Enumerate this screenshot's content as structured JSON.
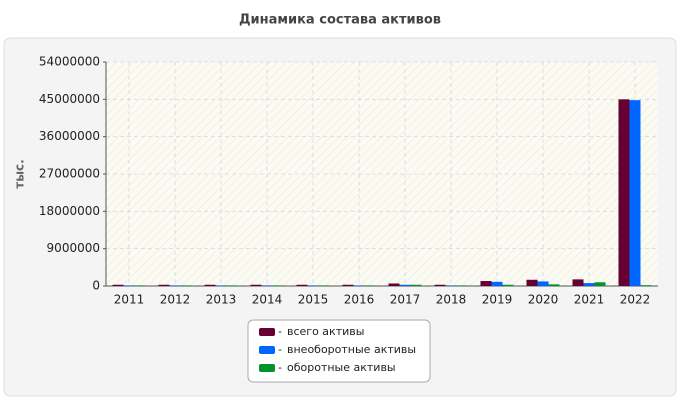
{
  "chart_data": {
    "type": "bar",
    "title": "Динамика состава активов",
    "y_label": "тыс.",
    "categories": [
      "2011",
      "2012",
      "2013",
      "2014",
      "2015",
      "2016",
      "2017",
      "2018",
      "2019",
      "2020",
      "2021",
      "2022"
    ],
    "series": [
      {
        "name": "всего активы",
        "color": "#660033",
        "values": [
          300000,
          300000,
          300000,
          300000,
          300000,
          300000,
          600000,
          300000,
          1200000,
          1500000,
          1600000,
          45000000
        ]
      },
      {
        "name": "внеоборотные активы",
        "color": "#0066ff",
        "values": [
          150000,
          150000,
          150000,
          150000,
          150000,
          150000,
          300000,
          150000,
          1000000,
          1100000,
          700000,
          44800000
        ]
      },
      {
        "name": "оборотные активы",
        "color": "#00942e",
        "values": [
          150000,
          150000,
          150000,
          150000,
          150000,
          150000,
          300000,
          150000,
          300000,
          400000,
          900000,
          200000
        ]
      }
    ],
    "ylim": [
      0,
      54000000
    ],
    "yticks": [
      0,
      9000000,
      18000000,
      27000000,
      36000000,
      45000000,
      54000000
    ],
    "grid": true
  }
}
